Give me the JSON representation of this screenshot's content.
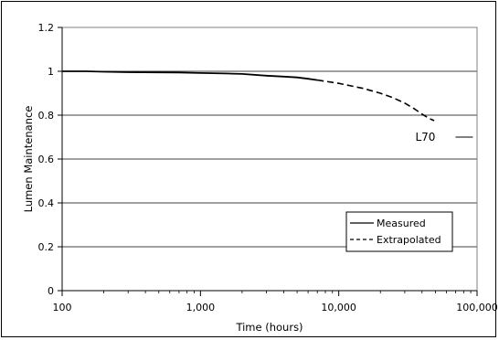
{
  "chart_data": {
    "type": "line",
    "xlabel": "Time (hours)",
    "ylabel": "Lumen Maintenance",
    "x_scale": "log",
    "xlim": [
      100,
      100000
    ],
    "ylim": [
      0,
      1.2
    ],
    "x_ticks": [
      "100",
      "1,000",
      "10,000",
      "100,000"
    ],
    "y_ticks": [
      "0",
      "0.2",
      "0.4",
      "0.6",
      "0.8",
      "1",
      "1.2"
    ],
    "grid": "horizontal",
    "legend_position": "bottom-right",
    "series": [
      {
        "name": "Measured",
        "line_style": "solid",
        "x": [
          100,
          150,
          200,
          300,
          500,
          700,
          1000,
          1500,
          2000,
          3000,
          4000,
          5000,
          6000,
          7000
        ],
        "y": [
          1.0,
          1.0,
          0.998,
          0.996,
          0.995,
          0.994,
          0.992,
          0.99,
          0.988,
          0.98,
          0.976,
          0.972,
          0.966,
          0.96
        ]
      },
      {
        "name": "Extrapolated",
        "line_style": "dashed",
        "x": [
          7000,
          10000,
          15000,
          20000,
          25000,
          30000,
          35000,
          40000,
          45000,
          49000
        ],
        "y": [
          0.96,
          0.945,
          0.922,
          0.9,
          0.878,
          0.855,
          0.83,
          0.805,
          0.785,
          0.775
        ]
      }
    ],
    "annotations": [
      {
        "text": "L70",
        "x": 50000,
        "y": 0.7
      }
    ]
  }
}
